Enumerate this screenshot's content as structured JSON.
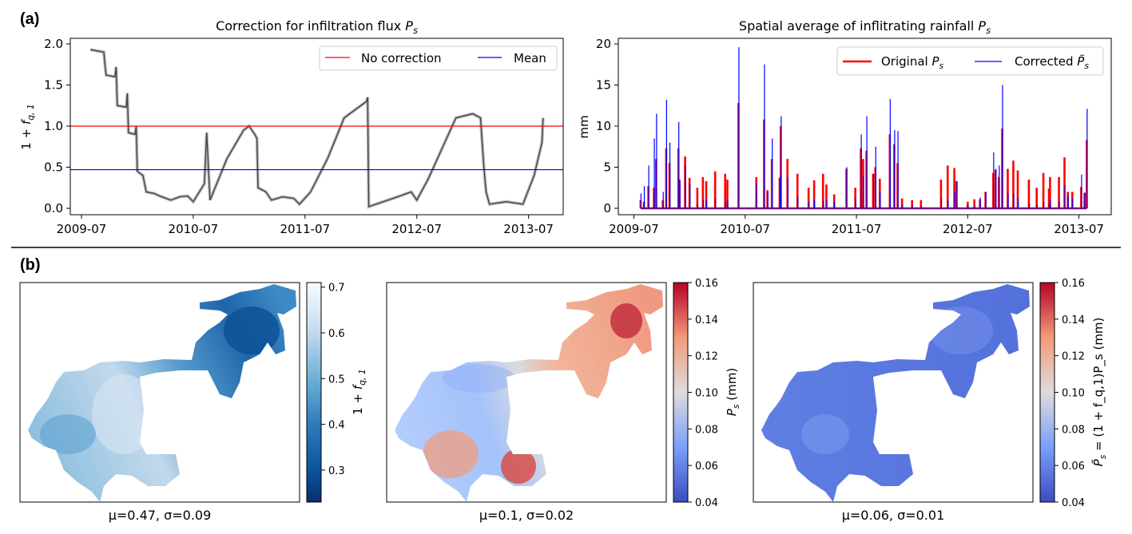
{
  "panel_labels": {
    "a": "(a)",
    "b": "(b)"
  },
  "chart_data": [
    {
      "type": "line",
      "title": {
        "text": "Correction for infiltration flux ",
        "symbol": "P",
        "sub": "s"
      },
      "ylabel": {
        "prefix": "1 + ",
        "symbol": "f",
        "sub": "q, 1"
      },
      "xlabel": "",
      "xlim": [
        2009.4,
        2013.81
      ],
      "ylim": [
        -0.078,
        2.068
      ],
      "xticks": [
        {
          "value": 2009.5,
          "label": "2009-07"
        },
        {
          "value": 2010.5,
          "label": "2010-07"
        },
        {
          "value": 2011.5,
          "label": "2011-07"
        },
        {
          "value": 2012.5,
          "label": "2012-07"
        },
        {
          "value": 2013.5,
          "label": "2013-07"
        }
      ],
      "yticks": [
        {
          "value": 0.0,
          "label": "0.0"
        },
        {
          "value": 0.5,
          "label": "0.5"
        },
        {
          "value": 1.0,
          "label": "1.0"
        },
        {
          "value": 1.5,
          "label": "1.5"
        },
        {
          "value": 2.0,
          "label": "2.0"
        }
      ],
      "legend": {
        "placement": "top-right",
        "entries": [
          {
            "label": "No correction",
            "color": "#ff0000"
          },
          {
            "label": "Mean",
            "color": "#0000ff"
          }
        ]
      },
      "hlines": [
        {
          "name": "No correction",
          "value": 1.0,
          "color": "#ff0000"
        },
        {
          "name": "Mean",
          "value": 0.47,
          "color": "#0000ff"
        }
      ],
      "series": [
        {
          "name": "1 + f_q,1",
          "color": "#404040",
          "x": [
            2009.58,
            2009.7,
            2009.71,
            2009.72,
            2009.8,
            2009.81,
            2009.82,
            2009.9,
            2009.91,
            2009.92,
            2009.98,
            2009.99,
            2010.0,
            2010.05,
            2010.08,
            2010.15,
            2010.2,
            2010.3,
            2010.38,
            2010.45,
            2010.5,
            2010.6,
            2010.62,
            2010.65,
            2010.8,
            2010.95,
            2011.0,
            2011.05,
            2011.07,
            2011.08,
            2011.15,
            2011.2,
            2011.3,
            2011.4,
            2011.45,
            2011.55,
            2011.7,
            2011.85,
            2012.0,
            2012.05,
            2012.06,
            2012.07,
            2012.2,
            2012.35,
            2012.45,
            2012.5,
            2012.6,
            2012.75,
            2012.85,
            2013.0,
            2013.07,
            2013.1,
            2013.12,
            2013.15,
            2013.3,
            2013.45,
            2013.55,
            2013.62,
            2013.63
          ],
          "y": [
            1.93,
            1.9,
            1.75,
            1.62,
            1.6,
            1.72,
            1.25,
            1.23,
            1.4,
            0.92,
            0.9,
            1.0,
            0.45,
            0.4,
            0.2,
            0.18,
            0.15,
            0.1,
            0.14,
            0.15,
            0.08,
            0.3,
            0.92,
            0.1,
            0.6,
            0.95,
            1.0,
            0.9,
            0.85,
            0.25,
            0.2,
            0.1,
            0.14,
            0.12,
            0.05,
            0.2,
            0.6,
            1.1,
            1.25,
            1.3,
            1.35,
            0.02,
            0.08,
            0.15,
            0.2,
            0.1,
            0.35,
            0.8,
            1.1,
            1.15,
            1.1,
            0.5,
            0.2,
            0.05,
            0.08,
            0.05,
            0.4,
            0.8,
            1.1
          ]
        }
      ]
    },
    {
      "type": "line",
      "title": {
        "text": "Spatial average of inflitrating rainfall ",
        "symbol": "P",
        "sub": "s"
      },
      "ylabel": "mm",
      "xlabel": "",
      "xlim": [
        2009.36,
        2013.79
      ],
      "ylim": [
        -0.78,
        20.68
      ],
      "xticks": [
        {
          "value": 2009.5,
          "label": "2009-07"
        },
        {
          "value": 2010.5,
          "label": "2010-07"
        },
        {
          "value": 2011.5,
          "label": "2011-07"
        },
        {
          "value": 2012.5,
          "label": "2012-07"
        },
        {
          "value": 2013.5,
          "label": "2013-07"
        }
      ],
      "yticks": [
        {
          "value": 0,
          "label": "0"
        },
        {
          "value": 5,
          "label": "5"
        },
        {
          "value": 10,
          "label": "10"
        },
        {
          "value": 15,
          "label": "15"
        },
        {
          "value": 20,
          "label": "20"
        }
      ],
      "legend": {
        "placement": "top-right",
        "entries": [
          {
            "label": "Original ",
            "symbol": "P",
            "sub": "s",
            "color": "#ff0000"
          },
          {
            "label": "Corrected ",
            "symbol": "P̃",
            "sub": "s",
            "color": "#0000ff"
          }
        ]
      },
      "x": [
        2009.56,
        2009.59,
        2009.63,
        2009.68,
        2009.7,
        2009.76,
        2009.79,
        2009.82,
        2009.9,
        2009.91,
        2009.96,
        2010.0,
        2010.07,
        2010.12,
        2010.15,
        2010.23,
        2010.32,
        2010.34,
        2010.44,
        2010.6,
        2010.67,
        2010.7,
        2010.74,
        2010.81,
        2010.82,
        2010.88,
        2010.97,
        2011.07,
        2011.12,
        2011.2,
        2011.23,
        2011.3,
        2011.41,
        2011.49,
        2011.54,
        2011.56,
        2011.59,
        2011.65,
        2011.67,
        2011.71,
        2011.8,
        2011.84,
        2011.87,
        2011.91,
        2012.0,
        2012.08,
        2012.26,
        2012.32,
        2012.38,
        2012.4,
        2012.5,
        2012.56,
        2012.61,
        2012.66,
        2012.73,
        2012.75,
        2012.78,
        2012.81,
        2012.86,
        2012.91,
        2012.95,
        2013.05,
        2013.12,
        2013.18,
        2013.23,
        2013.24,
        2013.32,
        2013.37,
        2013.4,
        2013.44,
        2013.52,
        2013.55,
        2013.57
      ],
      "series": [
        {
          "name": "Original P_s",
          "color": "#ff0000",
          "values": [
            1.0,
            0.8,
            2.7,
            2.5,
            6.0,
            1.0,
            7.3,
            5.5,
            7.3,
            3.0,
            6.3,
            3.7,
            2.5,
            3.8,
            3.3,
            4.5,
            4.2,
            3.5,
            12.8,
            3.8,
            10.8,
            2.2,
            6.0,
            3.7,
            10.0,
            6.0,
            4.2,
            2.5,
            3.4,
            4.2,
            2.9,
            1.7,
            4.8,
            2.5,
            7.3,
            6.0,
            7.0,
            4.2,
            5.0,
            3.6,
            9.0,
            7.8,
            5.5,
            1.2,
            1.0,
            1.0,
            3.5,
            5.2,
            4.9,
            3.3,
            0.8,
            1.1,
            1.1,
            2.0,
            4.3,
            4.7,
            3.8,
            9.7,
            4.8,
            5.8,
            4.6,
            3.5,
            2.5,
            4.3,
            2.4,
            3.8,
            3.8,
            6.2,
            2.0,
            2.0,
            2.6,
            1.9,
            8.3
          ]
        },
        {
          "name": "Corrected P̃_s",
          "color": "#0000ff",
          "values": [
            1.8,
            2.7,
            5.2,
            8.5,
            11.5,
            2.0,
            13.2,
            8.0,
            10.5,
            3.5,
            5.2,
            3.0,
            0.5,
            1.0,
            1.0,
            1.2,
            0.8,
            1.0,
            19.6,
            3.0,
            17.5,
            2.0,
            8.5,
            3.8,
            11.2,
            3.8,
            1.5,
            0.8,
            1.0,
            0.9,
            1.0,
            0.8,
            5.0,
            1.2,
            9.0,
            4.0,
            11.2,
            4.2,
            7.5,
            2.0,
            13.3,
            9.5,
            9.4,
            0.4,
            0.3,
            0.3,
            1.2,
            1.0,
            2.0,
            3.3,
            0.4,
            0.3,
            1.3,
            2.0,
            6.8,
            4.8,
            5.2,
            15.0,
            1.8,
            1.8,
            1.2,
            0.6,
            0.4,
            0.8,
            0.5,
            1.0,
            0.8,
            2.8,
            1.5,
            1.2,
            4.1,
            1.9,
            12.1
          ]
        }
      ]
    },
    {
      "type": "heatmap",
      "caption": "μ=0.47, σ=0.09",
      "colormap": "Blues_r",
      "colorbar": {
        "label_prefix": "1 + ",
        "label_symbol": "f",
        "label_sub": "q, 1",
        "range": [
          0.23,
          0.71
        ],
        "ticks": [
          {
            "value": 0.3,
            "label": "0.3"
          },
          {
            "value": 0.4,
            "label": "0.4"
          },
          {
            "value": 0.5,
            "label": "0.5"
          },
          {
            "value": 0.6,
            "label": "0.6"
          },
          {
            "value": 0.7,
            "label": "0.7"
          }
        ]
      }
    },
    {
      "type": "heatmap",
      "caption": "μ=0.1, σ=0.02",
      "colormap": "coolwarm",
      "colorbar": {
        "label_prefix": "",
        "label_symbol": "P",
        "label_sub": "s",
        "label_suffix": " (mm)",
        "range": [
          0.04,
          0.16
        ],
        "ticks": [
          {
            "value": 0.04,
            "label": "0.04"
          },
          {
            "value": 0.06,
            "label": "0.06"
          },
          {
            "value": 0.08,
            "label": "0.08"
          },
          {
            "value": 0.1,
            "label": "0.10"
          },
          {
            "value": 0.12,
            "label": "0.12"
          },
          {
            "value": 0.14,
            "label": "0.14"
          },
          {
            "value": 0.16,
            "label": "0.16"
          }
        ]
      }
    },
    {
      "type": "heatmap",
      "caption": "μ=0.06, σ=0.01",
      "colormap": "coolwarm",
      "colorbar": {
        "label_prefix": "",
        "label_symbol": "P̃",
        "label_sub": "s",
        "label_suffix": " = (1 + f_q,1)P_s (mm)",
        "range": [
          0.04,
          0.16
        ],
        "ticks": [
          {
            "value": 0.04,
            "label": "0.04"
          },
          {
            "value": 0.06,
            "label": "0.06"
          },
          {
            "value": 0.08,
            "label": "0.08"
          },
          {
            "value": 0.1,
            "label": "0.10"
          },
          {
            "value": 0.12,
            "label": "0.12"
          },
          {
            "value": 0.14,
            "label": "0.14"
          },
          {
            "value": 0.16,
            "label": "0.16"
          }
        ]
      }
    }
  ]
}
